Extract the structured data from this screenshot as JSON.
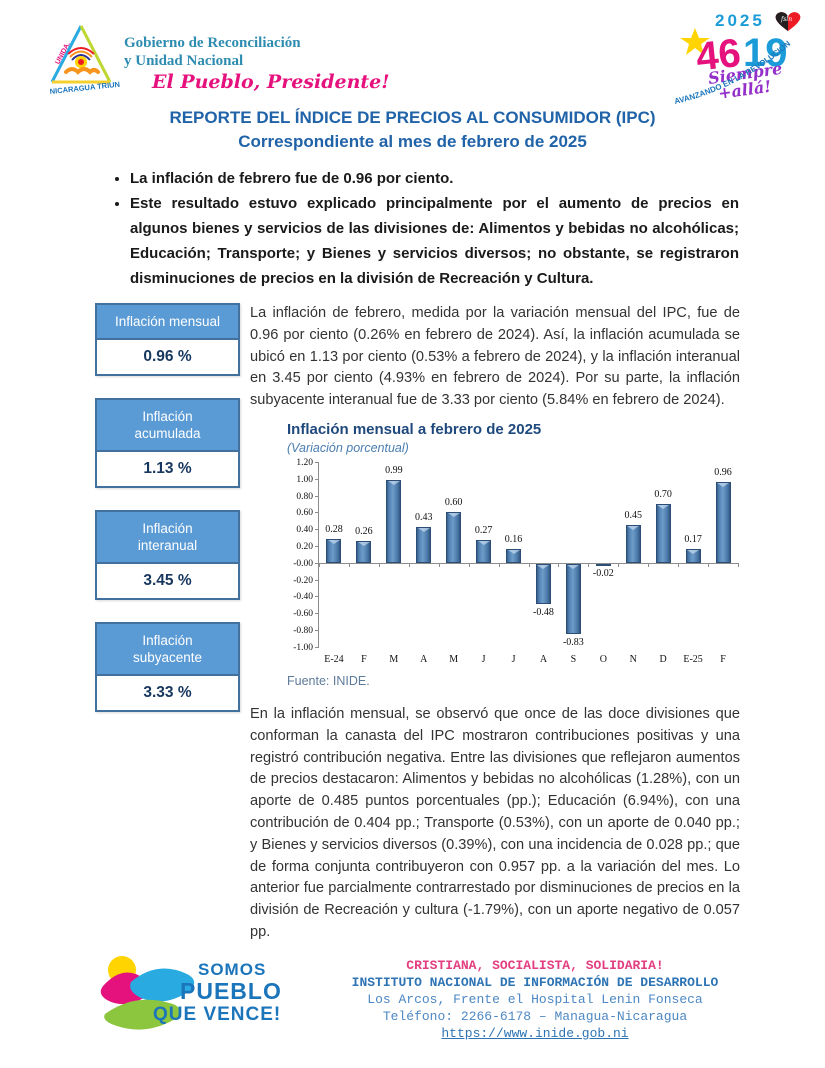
{
  "header": {
    "gov_logo": {
      "line1": "Gobierno de Reconciliación",
      "line2": "y Unidad Nacional",
      "slogan": "El Pueblo, Presidente!",
      "emblem_left": "UNIDA.",
      "emblem_bottom": "NICARAGUA TRIUNFA!"
    },
    "anniv_logo": {
      "year": "2025",
      "num46": "46",
      "num19": "19",
      "script_line1": "Siempre",
      "script_line2": "+allá!",
      "arc_text": "AVANZANDO EN LA REVOLUCIÓN!",
      "heart_text": "fsln"
    }
  },
  "title": {
    "line1": "REPORTE DEL ÍNDICE DE PRECIOS AL CONSUMIDOR (IPC)",
    "line2": "Correspondiente al mes de febrero de 2025"
  },
  "bullets": [
    "La inflación de febrero fue de 0.96 por ciento.",
    "Este resultado estuvo explicado principalmente por el aumento de precios en algunos bienes y servicios de las divisiones de: Alimentos y bebidas no alcohólicas; Educación; Transporte; y Bienes y servicios diversos; no obstante, se registraron disminuciones de precios en la división de Recreación y Cultura."
  ],
  "stats": {
    "boxes": [
      {
        "label": "Inflación mensual",
        "value": "0.96 %"
      },
      {
        "label": "Inflación\nacumulada",
        "value": "1.13 %"
      },
      {
        "label": "Inflación\ninteranual",
        "value": "3.45 %"
      },
      {
        "label": "Inflación\nsubyacente",
        "value": "3.33 %"
      }
    ]
  },
  "paragraphs": {
    "p1": "La inflación de febrero, medida por la variación mensual del IPC, fue de 0.96 por ciento (0.26% en febrero de 2024). Así, la inflación acumulada se ubicó en 1.13 por ciento (0.53% a febrero de 2024), y la inflación interanual en 3.45 por ciento (4.93% en febrero de 2024). Por su parte, la inflación subyacente interanual fue de 3.33 por ciento (5.84% en febrero de 2024).",
    "p2": "En la inflación mensual, se observó que once de las doce divisiones que conforman la canasta del IPC mostraron contribuciones positivas y una registró contribución negativa. Entre las divisiones que reflejaron aumentos de precios destacaron: Alimentos y bebidas no alcohólicas (1.28%), con un aporte de 0.485 puntos porcentuales (pp.); Educación (6.94%), con una contribución de 0.404 pp.; Transporte (0.53%), con un aporte de 0.040 pp.; y Bienes y servicios diversos (0.39%), con una incidencia de 0.028 pp.; que de forma conjunta contribuyeron con 0.957 pp. a la variación del mes. Lo anterior fue parcialmente contrarrestado por disminuciones de precios en la división de Recreación y cultura (-1.79%), con un aporte negativo de 0.057 pp."
  },
  "chart_data": {
    "type": "bar",
    "title": "Inflación mensual a febrero de 2025",
    "subtitle": "(Variación porcentual)",
    "categories": [
      "E-24",
      "F",
      "M",
      "A",
      "M",
      "J",
      "J",
      "A",
      "S",
      "O",
      "N",
      "D",
      "E-25",
      "F"
    ],
    "values": [
      0.28,
      0.26,
      0.99,
      0.43,
      0.6,
      0.27,
      0.16,
      -0.48,
      -0.83,
      -0.02,
      0.45,
      0.7,
      0.17,
      0.96
    ],
    "ylim": [
      -1.0,
      1.2
    ],
    "ytick_step": 0.2,
    "grid": false,
    "legend": "none",
    "bar_color": "#4A7EBB",
    "source": "Fuente: INIDE."
  },
  "footer": {
    "logo": {
      "line1": "SOMOS",
      "line2": "PUEBLO",
      "line3": "QUE VENCE!"
    },
    "slogan": "CRISTIANA, SOCIALISTA, SOLIDARIA!",
    "institute": "INSTITUTO NACIONAL DE INFORMACIÓN DE DESARROLLO",
    "address": "Los Arcos, Frente el Hospital Lenin Fonseca",
    "phone": "Teléfono: 2266-6178 – Managua-Nicaragua",
    "url": "https://www.inide.gob.ni"
  },
  "colors": {
    "title_blue": "#2163A8",
    "chart_title_blue": "#1F497D",
    "box_header_blue": "#5B9BD5",
    "box_border_blue": "#41719C",
    "box_value_navy": "#17375E",
    "slogan_pink": "#E5127D",
    "footer_pink": "#E23E80",
    "footer_blue": "#2E74B5"
  }
}
